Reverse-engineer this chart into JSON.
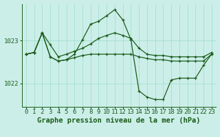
{
  "background_color": "#cceee8",
  "grid_color": "#99ddcc",
  "line_color": "#1a5c1a",
  "xlabel": "Graphe pression niveau de la mer (hPa)",
  "xlabel_fontsize": 7.5,
  "tick_fontsize": 6.5,
  "ylim": [
    1021.45,
    1023.85
  ],
  "xlim": [
    -0.5,
    23.5
  ],
  "yticks": [
    1022,
    1023
  ],
  "xticks": [
    0,
    1,
    2,
    3,
    4,
    5,
    6,
    7,
    8,
    9,
    10,
    11,
    12,
    13,
    14,
    15,
    16,
    17,
    18,
    19,
    20,
    21,
    22,
    23
  ],
  "line1_x": [
    0,
    1,
    2,
    3,
    4,
    5,
    6,
    7,
    8,
    9,
    10,
    11,
    12,
    13,
    14,
    15,
    16,
    17,
    18,
    19,
    20,
    21,
    22,
    23
  ],
  "line1_y": [
    1022.68,
    1022.72,
    1023.18,
    1022.9,
    1022.62,
    1022.68,
    1022.75,
    1022.82,
    1022.92,
    1023.05,
    1023.12,
    1023.18,
    1023.12,
    1023.05,
    1022.82,
    1022.68,
    1022.65,
    1022.65,
    1022.62,
    1022.62,
    1022.62,
    1022.62,
    1022.62,
    1022.72
  ],
  "line2_x": [
    0,
    1,
    2,
    3,
    4,
    5,
    6,
    7,
    8,
    9,
    10,
    11,
    12,
    13,
    14,
    15,
    16,
    17,
    18,
    19,
    20,
    21,
    22,
    23
  ],
  "line2_y": [
    1022.68,
    1022.72,
    1023.18,
    1022.62,
    1022.52,
    1022.55,
    1022.6,
    1022.65,
    1022.68,
    1022.68,
    1022.68,
    1022.68,
    1022.68,
    1022.68,
    1022.62,
    1022.58,
    1022.55,
    1022.55,
    1022.52,
    1022.52,
    1022.52,
    1022.52,
    1022.52,
    1022.68
  ],
  "line3_x": [
    0,
    1,
    2,
    3,
    4,
    5,
    6,
    7,
    8,
    9,
    10,
    11,
    12,
    13,
    14,
    15,
    16,
    17,
    18,
    19,
    20,
    21,
    22,
    23
  ],
  "line3_y": [
    1022.68,
    1022.72,
    1023.18,
    1022.62,
    1022.52,
    1022.55,
    1022.68,
    1023.02,
    1023.38,
    1023.45,
    1023.58,
    1023.72,
    1023.48,
    1023.02,
    1021.82,
    1021.68,
    1021.62,
    1021.62,
    1022.08,
    1022.12,
    1022.12,
    1022.12,
    1022.42,
    1022.68
  ]
}
